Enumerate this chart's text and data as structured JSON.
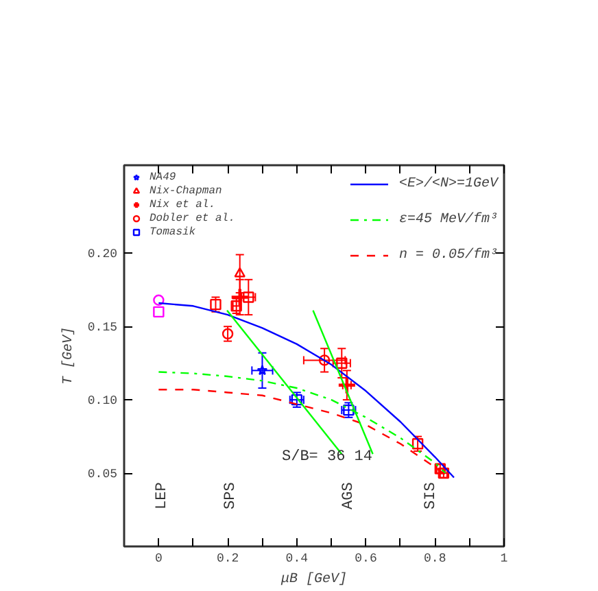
{
  "chart_data": {
    "type": "scatter",
    "xlabel": "μB [GeV]",
    "ylabel": "T [GeV]",
    "xlim": [
      -0.1,
      1.0
    ],
    "ylim": [
      0,
      0.26
    ],
    "xticks": [
      0,
      {
        "value": 0.1,
        "label": null
      },
      0.2,
      {
        "value": 0.3,
        "label": null
      },
      0.4,
      {
        "value": 0.5,
        "label": null
      },
      0.6,
      {
        "value": 0.7,
        "label": null
      },
      0.8,
      {
        "value": 0.9,
        "label": null
      },
      1
    ],
    "yticks": [
      {
        "value": 0.05,
        "label": "0.05"
      },
      {
        "value": 0.1,
        "label": "0.10"
      },
      {
        "value": 0.15,
        "label": "0.15"
      },
      {
        "value": 0.2,
        "label": "0.20"
      }
    ],
    "grid": false,
    "legend": "top right",
    "series": [
      {
        "name": "NA49",
        "color": "#0000ff",
        "marker": "star",
        "x": [
          0.3
        ],
        "values": [
          0.12
        ],
        "errors": [
          0.012
        ],
        "xerrors": [
          0.03
        ]
      },
      {
        "name": "Nix-Chapman",
        "color": "#ff0000",
        "marker": "triangle",
        "x": [
          0.235
        ],
        "values": [
          0.186
        ],
        "errors": [
          0.013
        ],
        "xerrors": [
          null
        ]
      },
      {
        "name": "Nix et al.",
        "color": "#ff0000",
        "marker": "cross",
        "x": [
          0.235,
          0.545
        ],
        "values": [
          0.17,
          0.11
        ],
        "errors": [
          0.012,
          0.01
        ],
        "xerrors": [
          null,
          0.012
        ]
      },
      {
        "name": "Dobler et al.",
        "color": "#ff0000",
        "marker": "circle",
        "x": [
          0.48,
          0.2
        ],
        "values": [
          0.127,
          0.145
        ],
        "errors": [
          0.008,
          0.005
        ],
        "xerrors": [
          0.06,
          null
        ]
      },
      {
        "name": "Tomasik",
        "color": "#0000ff",
        "marker": "square",
        "x": [
          0.4
        ],
        "values": [
          0.1
        ],
        "errors": [
          0.005
        ],
        "xerrors": [
          0.02
        ]
      },
      {
        "color": "#ff0000",
        "marker": "square",
        "x": [
          0.26,
          0.165,
          0.225,
          0.53,
          0.75,
          0.815,
          0.825
        ],
        "values": [
          0.17,
          0.165,
          0.164,
          0.125,
          0.07,
          0.053,
          0.05
        ],
        "errors": [
          0.012,
          0.005,
          0.005,
          0.01,
          0.005,
          0.003,
          0.003
        ],
        "xerrors": [
          0.02,
          null,
          0.01,
          0.025,
          null,
          0.01,
          0.01
        ]
      },
      {
        "color": "#0000ff",
        "marker": "square",
        "x": [
          0.55
        ],
        "values": [
          0.093
        ],
        "errors": [
          0.005
        ],
        "xerrors": [
          0.02
        ]
      },
      {
        "color": "#ff00ff",
        "marker": "circle",
        "x": [
          0
        ],
        "values": [
          0.168
        ]
      },
      {
        "color": "#ff00ff",
        "marker": "square",
        "x": [
          0
        ],
        "values": [
          0.16
        ]
      },
      {
        "name": "<E>/<N>=1GeV",
        "type": "line",
        "color": "#0000ff",
        "line_style": "solid",
        "x": [
          0,
          0.1,
          0.2,
          0.3,
          0.4,
          0.5,
          0.6,
          0.7,
          0.8,
          0.855
        ],
        "values": [
          0.166,
          0.164,
          0.158,
          0.149,
          0.138,
          0.124,
          0.106,
          0.085,
          0.061,
          0.047
        ]
      },
      {
        "name": "ε=45 MeV/fm³",
        "type": "line",
        "color": "#00ff00",
        "line_style": "dashdot",
        "x": [
          0,
          0.1,
          0.2,
          0.3,
          0.4,
          0.5,
          0.6,
          0.7,
          0.8,
          0.83
        ],
        "values": [
          0.119,
          0.118,
          0.116,
          0.113,
          0.108,
          0.1,
          0.088,
          0.074,
          0.057,
          0.05
        ]
      },
      {
        "name": "n = 0.05/fm³",
        "type": "line",
        "color": "#ff0000",
        "line_style": "dashed",
        "x": [
          0,
          0.1,
          0.2,
          0.3,
          0.4,
          0.5,
          0.6,
          0.7,
          0.8,
          0.83
        ],
        "values": [
          0.107,
          0.107,
          0.105,
          0.103,
          0.097,
          0.091,
          0.083,
          0.07,
          0.054,
          0.049
        ]
      },
      {
        "type": "line",
        "color": "#00ff00",
        "line_style": "solid",
        "x": [
          0.198,
          0.53
        ],
        "values": [
          0.161,
          0.063
        ]
      },
      {
        "type": "line",
        "color": "#00ff00",
        "line_style": "solid",
        "x": [
          0.447,
          0.62
        ],
        "values": [
          0.161,
          0.063
        ]
      }
    ],
    "annotations": [
      "S/B= 36  14",
      "LEP",
      "SPS",
      "AGS",
      "SIS"
    ]
  }
}
